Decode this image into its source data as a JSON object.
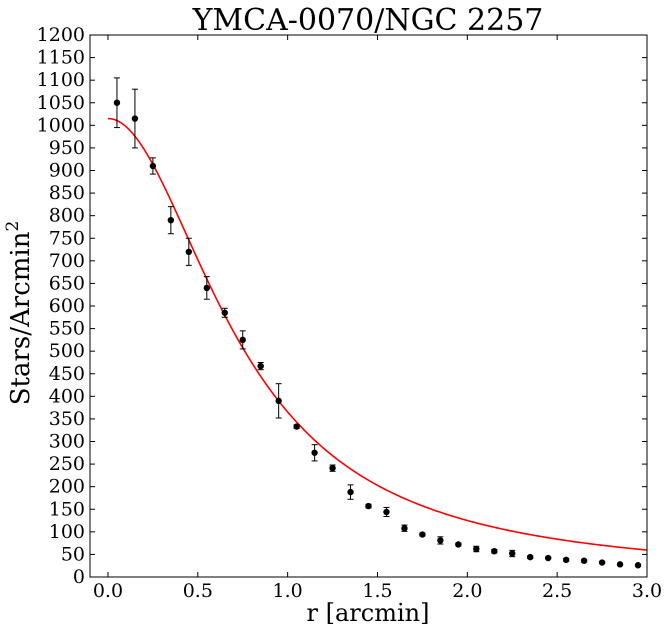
{
  "chart_data": {
    "type": "scatter",
    "title": "YMCA-0070/NGC 2257",
    "xlabel": "r [arcmin]",
    "ylabel_main": "Stars/Arcmin",
    "ylabel_sup": "2",
    "xlim": [
      -0.1,
      3.0
    ],
    "ylim": [
      0,
      1200
    ],
    "xticks": [
      0.0,
      0.5,
      1.0,
      1.5,
      2.0,
      2.5,
      3.0
    ],
    "xtick_labels": [
      "0.0",
      "0.5",
      "1.0",
      "1.5",
      "2.0",
      "2.5",
      "3.0"
    ],
    "yticks": [
      0,
      50,
      100,
      150,
      200,
      250,
      300,
      350,
      400,
      450,
      500,
      550,
      600,
      650,
      700,
      750,
      800,
      850,
      900,
      950,
      1000,
      1050,
      1100,
      1150,
      1200
    ],
    "ytick_labels": [
      "0",
      "50",
      "100",
      "150",
      "200",
      "250",
      "300",
      "350",
      "400",
      "450",
      "500",
      "550",
      "600",
      "650",
      "700",
      "750",
      "800",
      "850",
      "900",
      "950",
      "1000",
      "1050",
      "1100",
      "1150",
      "1200"
    ],
    "grid": false,
    "points": {
      "color": "#000000",
      "x": [
        0.05,
        0.15,
        0.25,
        0.35,
        0.45,
        0.55,
        0.65,
        0.75,
        0.85,
        0.95,
        1.05,
        1.15,
        1.25,
        1.35,
        1.45,
        1.55,
        1.65,
        1.75,
        1.85,
        1.95,
        2.05,
        2.15,
        2.25,
        2.35,
        2.45,
        2.55,
        2.65,
        2.75,
        2.85,
        2.95
      ],
      "y": [
        1050,
        1015,
        910,
        790,
        720,
        640,
        585,
        525,
        467,
        390,
        333,
        275,
        241,
        188,
        157,
        144,
        108,
        94,
        81,
        72,
        62,
        57,
        52,
        44,
        42,
        38,
        36,
        32,
        28,
        26
      ],
      "err": [
        55,
        65,
        18,
        30,
        30,
        25,
        10,
        20,
        8,
        38,
        4,
        18,
        7,
        16,
        4,
        10,
        7,
        3,
        8,
        3,
        6,
        4,
        7,
        3,
        2,
        3,
        3,
        2,
        2,
        2
      ]
    },
    "fit": {
      "color": "#ff0000",
      "model": "king",
      "f0": 1015,
      "rc": 0.75,
      "bg": 0,
      "x_range": [
        0.0,
        3.0
      ]
    }
  }
}
